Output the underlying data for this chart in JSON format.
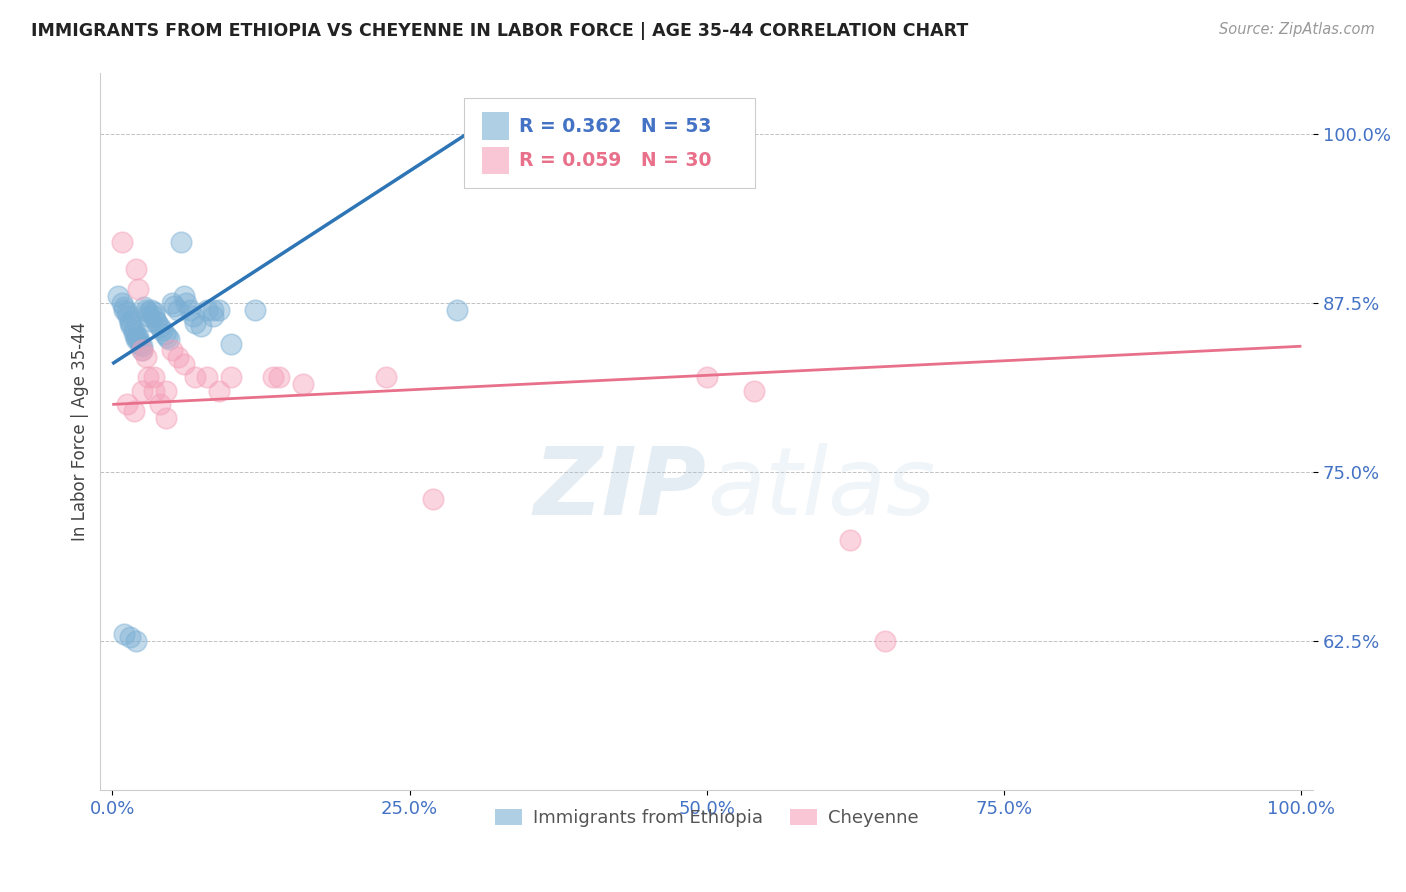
{
  "title": "IMMIGRANTS FROM ETHIOPIA VS CHEYENNE IN LABOR FORCE | AGE 35-44 CORRELATION CHART",
  "source": "Source: ZipAtlas.com",
  "ylabel": "In Labor Force | Age 35-44",
  "xlim": [
    -0.01,
    1.01
  ],
  "ylim": [
    0.515,
    1.045
  ],
  "yticks": [
    0.625,
    0.75,
    0.875,
    1.0
  ],
  "ytick_labels": [
    "62.5%",
    "75.0%",
    "87.5%",
    "100.0%"
  ],
  "xticks": [
    0.0,
    0.25,
    0.5,
    0.75,
    1.0
  ],
  "xtick_labels": [
    "0.0%",
    "25.0%",
    "50.0%",
    "75.0%",
    "100.0%"
  ],
  "blue_R": 0.362,
  "blue_N": 53,
  "pink_R": 0.059,
  "pink_N": 30,
  "blue_color": "#7BAFD4",
  "pink_color": "#F4A0B8",
  "blue_line_color": "#2E75B6",
  "pink_line_color": "#E8708A",
  "title_color": "#222222",
  "axis_tick_color": "#4472C4",
  "watermark_color": "#C8D8EC",
  "legend_blue_label": "Immigrants from Ethiopia",
  "legend_pink_label": "Cheyenne",
  "blue_scatter_x": [
    0.005,
    0.008,
    0.01,
    0.01,
    0.012,
    0.013,
    0.015,
    0.015,
    0.016,
    0.018,
    0.018,
    0.02,
    0.02,
    0.022,
    0.022,
    0.023,
    0.025,
    0.025,
    0.027,
    0.028,
    0.03,
    0.03,
    0.032,
    0.033,
    0.035,
    0.035,
    0.037,
    0.038,
    0.04,
    0.042,
    0.044,
    0.046,
    0.048,
    0.05,
    0.052,
    0.055,
    0.058,
    0.06,
    0.062,
    0.065,
    0.068,
    0.07,
    0.075,
    0.08,
    0.085,
    0.09,
    0.1,
    0.12,
    0.01,
    0.015,
    0.02,
    0.085,
    0.29
  ],
  "blue_scatter_y": [
    0.88,
    0.875,
    0.872,
    0.87,
    0.868,
    0.865,
    0.862,
    0.86,
    0.858,
    0.855,
    0.853,
    0.85,
    0.848,
    0.85,
    0.848,
    0.845,
    0.843,
    0.84,
    0.872,
    0.87,
    0.868,
    0.865,
    0.862,
    0.87,
    0.868,
    0.865,
    0.862,
    0.86,
    0.857,
    0.855,
    0.852,
    0.85,
    0.848,
    0.875,
    0.873,
    0.87,
    0.92,
    0.88,
    0.875,
    0.87,
    0.865,
    0.86,
    0.858,
    0.87,
    0.865,
    0.87,
    0.845,
    0.87,
    0.63,
    0.628,
    0.625,
    0.87,
    0.87
  ],
  "pink_scatter_x": [
    0.008,
    0.02,
    0.022,
    0.025,
    0.028,
    0.03,
    0.035,
    0.04,
    0.045,
    0.05,
    0.055,
    0.06,
    0.07,
    0.08,
    0.09,
    0.1,
    0.14,
    0.16,
    0.012,
    0.018,
    0.025,
    0.035,
    0.045,
    0.135,
    0.23,
    0.27,
    0.62,
    0.65,
    0.5,
    0.54
  ],
  "pink_scatter_y": [
    0.92,
    0.9,
    0.885,
    0.84,
    0.835,
    0.82,
    0.81,
    0.8,
    0.79,
    0.84,
    0.835,
    0.83,
    0.82,
    0.82,
    0.81,
    0.82,
    0.82,
    0.815,
    0.8,
    0.795,
    0.81,
    0.82,
    0.81,
    0.82,
    0.82,
    0.73,
    0.7,
    0.625,
    0.82,
    0.81
  ],
  "blue_trendline_x": [
    0.0,
    0.3
  ],
  "blue_trendline_y": [
    0.83,
    1.001
  ],
  "pink_trendline_x": [
    0.0,
    1.0
  ],
  "pink_trendline_y": [
    0.8,
    0.843
  ]
}
